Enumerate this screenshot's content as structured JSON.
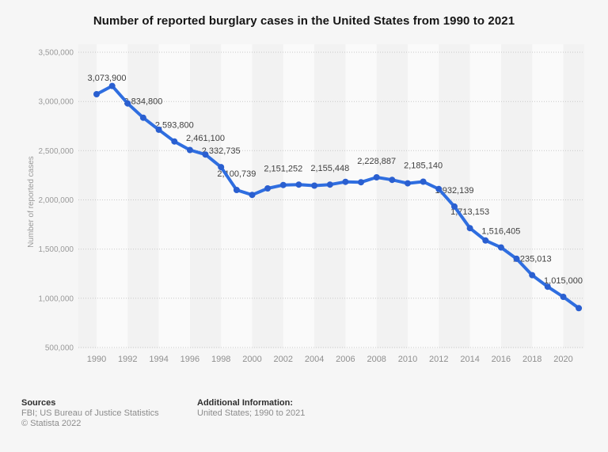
{
  "chart_data": {
    "type": "line",
    "title": "Number of reported burglary cases in the United States from 1990 to 2021",
    "xlabel": "",
    "ylabel": "Number of reported cases",
    "legend": "none",
    "grid": "horizontal dotted",
    "xlim": [
      1990,
      2021
    ],
    "ylim": [
      500000,
      3500000
    ],
    "x": [
      1990,
      1991,
      1992,
      1993,
      1994,
      1995,
      1996,
      1997,
      1998,
      1999,
      2000,
      2001,
      2002,
      2003,
      2004,
      2005,
      2006,
      2007,
      2008,
      2009,
      2010,
      2011,
      2012,
      2013,
      2014,
      2015,
      2016,
      2017,
      2018,
      2019,
      2020,
      2021
    ],
    "values": [
      3073900,
      3157200,
      2979900,
      2834800,
      2712800,
      2593800,
      2506400,
      2461100,
      2332735,
      2100739,
      2050992,
      2116531,
      2151252,
      2154834,
      2144446,
      2155448,
      2183746,
      2179140,
      2228887,
      2203313,
      2168459,
      2185140,
      2109932,
      1932139,
      1713153,
      1587564,
      1516405,
      1401840,
      1235013,
      1117696,
      1015000,
      899700
    ],
    "point_labels": [
      {
        "x": 1990,
        "text": "3,073,900",
        "dx": 13
      },
      {
        "x": 1993,
        "text": "2,834,800"
      },
      {
        "x": 1995,
        "text": "2,593,800"
      },
      {
        "x": 1997,
        "text": "2,461,100"
      },
      {
        "x": 1998,
        "text": "2,332,735"
      },
      {
        "x": 1999,
        "text": "2,100,739"
      },
      {
        "x": 2002,
        "text": "2,151,252"
      },
      {
        "x": 2005,
        "text": "2,155,448"
      },
      {
        "x": 2008,
        "text": "2,228,887"
      },
      {
        "x": 2011,
        "text": "2,185,140"
      },
      {
        "x": 2013,
        "text": "1,932,139"
      },
      {
        "x": 2014,
        "text": "1,713,153"
      },
      {
        "x": 2016,
        "text": "1,516,405"
      },
      {
        "x": 2018,
        "text": "1,235,013"
      },
      {
        "x": 2020,
        "text": "1,015,000"
      }
    ],
    "y_ticks": [
      {
        "value": 500000,
        "label": "500,000"
      },
      {
        "value": 1000000,
        "label": "1,000,000"
      },
      {
        "value": 1500000,
        "label": "1,500,000"
      },
      {
        "value": 2000000,
        "label": "2,000,000"
      },
      {
        "value": 2500000,
        "label": "2,500,000"
      },
      {
        "value": 3000000,
        "label": "3,000,000"
      },
      {
        "value": 3500000,
        "label": "3,500,000"
      }
    ],
    "x_ticks": [
      1990,
      1992,
      1994,
      1996,
      1998,
      2000,
      2002,
      2004,
      2006,
      2008,
      2010,
      2012,
      2014,
      2016,
      2018,
      2020
    ],
    "colors": {
      "line": "#2F6EE0",
      "marker": "#2A5FD0",
      "band_light": "#FAFAFA",
      "band_dark": "#F2F2F2",
      "grid": "#C8C8C8",
      "data_label": "#404040",
      "tick_label": "#8F8F8F",
      "y_tick_label": "#9A9A9A"
    }
  },
  "footer": {
    "sources_heading": "Sources",
    "sources_text": "FBI; US Bureau of Justice Statistics",
    "copyright": "© Statista 2022",
    "additional_heading": "Additional Information:",
    "additional_text": "United States; 1990 to 2021"
  }
}
